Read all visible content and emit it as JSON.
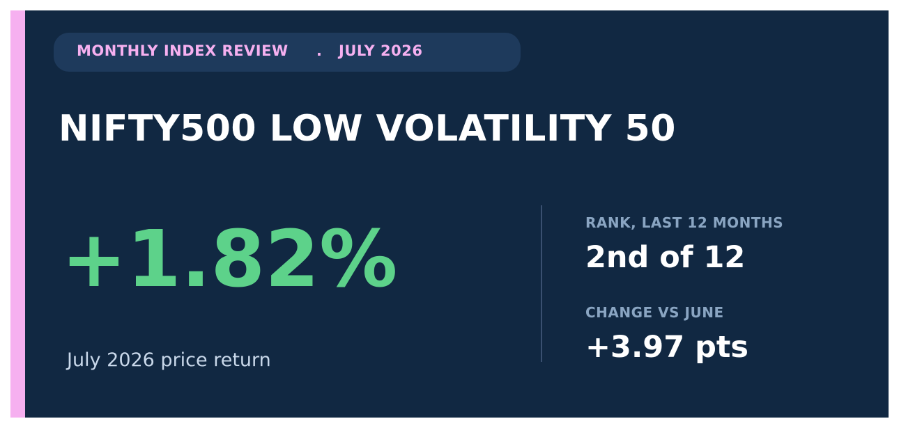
{
  "header": {
    "badge_left": "MONTHLY INDEX REVIEW",
    "badge_separator": ".",
    "badge_right": "JULY 2026"
  },
  "title": "NIFTY500 LOW VOLATILITY 50",
  "headline": {
    "value": "+1.82%",
    "caption": "July 2026 price return"
  },
  "stats": [
    {
      "label": "RANK, LAST 12 MONTHS",
      "value": "2nd of 12"
    },
    {
      "label": "CHANGE VS JUNE",
      "value": "+3.97 pts"
    }
  ],
  "colors": {
    "background": "#112842",
    "accent": "#f6b0f0",
    "positive": "#5dd28a",
    "badge": "#1e3a5c"
  }
}
